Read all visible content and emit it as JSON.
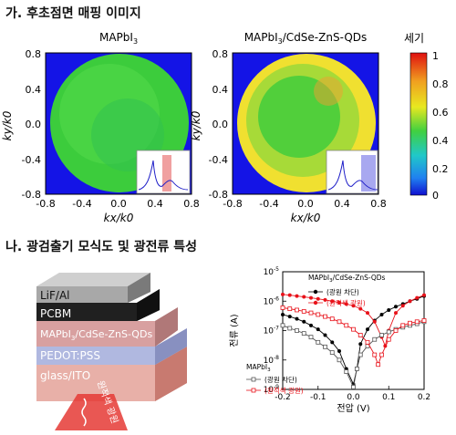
{
  "section_a": {
    "heading": "가. 후초점면 매핑 이미지",
    "panels": [
      {
        "title_main": "MAPbI",
        "title_sub": "3",
        "title_rest": ""
      },
      {
        "title_main": "MAPbI",
        "title_sub": "3",
        "title_rest": "/CdSe-ZnS-QDs"
      }
    ],
    "xlabel": "kx/k0",
    "ylabel": "ky/k0",
    "x_ticks": [
      "-0.8",
      "-0.4",
      "0.0",
      "0.4",
      "0.8"
    ],
    "y_ticks": [
      "0.8",
      "0.4",
      "0.0",
      "-0.4",
      "-0.8"
    ],
    "colorbar": {
      "label": "세기",
      "ticks": [
        "1",
        "0.8",
        "0.6",
        "0.4",
        "0.2",
        "0"
      ]
    },
    "colors": {
      "background": "#1414e6",
      "disk_left": "#3ccc3c",
      "disk_right_edge": "#f0e030",
      "inset_highlight_left": "#f0a0a0",
      "inset_highlight_right": "#a8a8f0"
    }
  },
  "section_b": {
    "heading": "나. 광검출기 모식도 및 광전류 특성",
    "device_layers": [
      {
        "label": "LiF/Al"
      },
      {
        "label": "PCBM"
      },
      {
        "label": "MAPbI3/CdSe-ZnS-QDs",
        "main": "MAPbI",
        "sub": "3",
        "rest": "/CdSe-ZnS-QDs"
      },
      {
        "label": "PEDOT:PSS"
      },
      {
        "label": "glass/ITO"
      }
    ],
    "light_label": "원적색 광원",
    "colors": {
      "light": "#e53935"
    }
  },
  "chart_data": {
    "type": "scatter",
    "xlabel": "전압 (V)",
    "ylabel": "전류 (A)",
    "xlim": [
      -0.2,
      0.2
    ],
    "ylim": [
      1e-09,
      1e-05
    ],
    "y_scale": "log",
    "x_ticks": [
      "-0.2",
      "-0.1",
      "0.0",
      "0.1",
      "0.2"
    ],
    "y_ticks": [
      "10^-5",
      "10^-6",
      "10^-7",
      "10^-8",
      "10^-9"
    ],
    "legend_groups": [
      {
        "title": "MAPbI3/CdSe-ZnS-QDs",
        "title_main": "MAPbI",
        "title_sub": "3",
        "title_rest": "/CdSe-ZnS-QDs",
        "position": "top-right",
        "entries": [
          {
            "label": "(광원 차단)",
            "color": "#000000",
            "marker": "filled"
          },
          {
            "label": "(원적색 광원)",
            "color": "#e8121a",
            "marker": "filled"
          }
        ]
      },
      {
        "title": "MAPbI3",
        "title_main": "MAPbI",
        "title_sub": "3",
        "title_rest": "",
        "position": "bottom-left",
        "entries": [
          {
            "label": "(광원 차단)",
            "color": "#555555",
            "marker": "open"
          },
          {
            "label": "(원적색 광원)",
            "color": "#e8121a",
            "marker": "open"
          }
        ]
      }
    ],
    "series": [
      {
        "name": "(광원 차단)",
        "group": "MAPbI3/CdSe-ZnS-QDs",
        "color": "#000000",
        "marker": "filled",
        "points": [
          [
            -0.2,
            3.5e-07
          ],
          [
            -0.18,
            3e-07
          ],
          [
            -0.16,
            2.5e-07
          ],
          [
            -0.14,
            2e-07
          ],
          [
            -0.12,
            1.5e-07
          ],
          [
            -0.1,
            1.1e-07
          ],
          [
            -0.08,
            7e-08
          ],
          [
            -0.06,
            4e-08
          ],
          [
            -0.04,
            2e-08
          ],
          [
            -0.02,
            5e-09
          ],
          [
            0.0,
            1.5e-09
          ],
          [
            0.01,
            5e-09
          ],
          [
            0.02,
            3.5e-08
          ],
          [
            0.04,
            1.1e-07
          ],
          [
            0.06,
            2.2e-07
          ],
          [
            0.08,
            3.5e-07
          ],
          [
            0.1,
            5e-07
          ],
          [
            0.12,
            6.5e-07
          ],
          [
            0.14,
            8e-07
          ],
          [
            0.16,
            1e-06
          ],
          [
            0.18,
            1.2e-06
          ],
          [
            0.2,
            1.5e-06
          ]
        ]
      },
      {
        "name": "(원적색 광원)",
        "group": "MAPbI3/CdSe-ZnS-QDs",
        "color": "#e8121a",
        "marker": "filled",
        "points": [
          [
            -0.2,
            1.7e-06
          ],
          [
            -0.18,
            1.6e-06
          ],
          [
            -0.16,
            1.5e-06
          ],
          [
            -0.14,
            1.4e-06
          ],
          [
            -0.12,
            1.3e-06
          ],
          [
            -0.1,
            1.2e-06
          ],
          [
            -0.08,
            1.1e-06
          ],
          [
            -0.06,
            1e-06
          ],
          [
            -0.04,
            9e-07
          ],
          [
            -0.02,
            8e-07
          ],
          [
            0.0,
            7e-07
          ],
          [
            0.02,
            5.5e-07
          ],
          [
            0.04,
            4e-07
          ],
          [
            0.06,
            2e-07
          ],
          [
            0.08,
            6e-08
          ],
          [
            0.09,
            3e-08
          ],
          [
            0.1,
            1e-07
          ],
          [
            0.12,
            4e-07
          ],
          [
            0.14,
            7e-07
          ],
          [
            0.16,
            1e-06
          ],
          [
            0.18,
            1.3e-06
          ],
          [
            0.2,
            1.6e-06
          ]
        ]
      },
      {
        "name": "(광원 차단)",
        "group": "MAPbI3",
        "color": "#555555",
        "marker": "open",
        "points": [
          [
            -0.2,
            1.5e-07
          ],
          [
            -0.18,
            1.2e-07
          ],
          [
            -0.16,
            1e-07
          ],
          [
            -0.14,
            8e-08
          ],
          [
            -0.12,
            6e-08
          ],
          [
            -0.1,
            4e-08
          ],
          [
            -0.08,
            2.8e-08
          ],
          [
            -0.06,
            1.8e-08
          ],
          [
            -0.04,
            1e-08
          ],
          [
            -0.02,
            4e-09
          ],
          [
            0.0,
            1.2e-09
          ],
          [
            0.01,
            5e-09
          ],
          [
            0.02,
            1.5e-08
          ],
          [
            0.04,
            3e-08
          ],
          [
            0.06,
            5e-08
          ],
          [
            0.08,
            7e-08
          ],
          [
            0.1,
            9e-08
          ],
          [
            0.12,
            1.1e-07
          ],
          [
            0.14,
            1.3e-07
          ],
          [
            0.16,
            1.5e-07
          ],
          [
            0.18,
            1.7e-07
          ],
          [
            0.2,
            2e-07
          ]
        ]
      },
      {
        "name": "(원적색 광원)",
        "group": "MAPbI3",
        "color": "#e8121a",
        "marker": "open",
        "points": [
          [
            -0.2,
            6e-07
          ],
          [
            -0.18,
            5.5e-07
          ],
          [
            -0.16,
            5e-07
          ],
          [
            -0.14,
            4.5e-07
          ],
          [
            -0.12,
            4e-07
          ],
          [
            -0.1,
            3.5e-07
          ],
          [
            -0.08,
            3e-07
          ],
          [
            -0.06,
            2.5e-07
          ],
          [
            -0.04,
            2e-07
          ],
          [
            -0.02,
            1.5e-07
          ],
          [
            0.0,
            1.1e-07
          ],
          [
            0.02,
            7e-08
          ],
          [
            0.04,
            4e-08
          ],
          [
            0.06,
            1.5e-08
          ],
          [
            0.07,
            7e-09
          ],
          [
            0.08,
            1.5e-08
          ],
          [
            0.1,
            5e-08
          ],
          [
            0.12,
            1e-07
          ],
          [
            0.14,
            1.5e-07
          ],
          [
            0.16,
            1.8e-07
          ],
          [
            0.18,
            2e-07
          ],
          [
            0.2,
            2.2e-07
          ]
        ]
      }
    ]
  }
}
